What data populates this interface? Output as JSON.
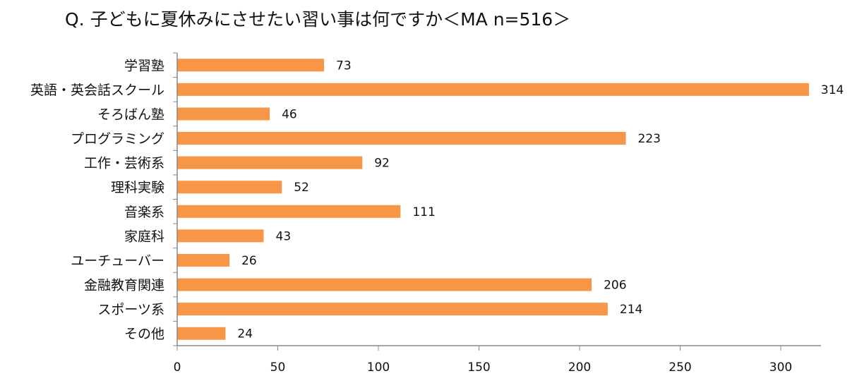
{
  "chart_data": {
    "type": "bar",
    "orientation": "horizontal",
    "title": "Q. 子どもに夏休みにさせたい習い事は何ですか＜MA n=516＞",
    "categories": [
      "学習塾",
      "英語・英会話スクール",
      "そろばん塾",
      "プログラミング",
      "工作・芸術系",
      "理科実験",
      "音楽系",
      "家庭科",
      "ユーチューバー",
      "金融教育関連",
      "スポーツ系",
      "その他"
    ],
    "values": [
      73,
      314,
      46,
      223,
      92,
      52,
      111,
      43,
      26,
      206,
      214,
      24
    ],
    "xlim": [
      0,
      320
    ],
    "xticks": [
      "0",
      "50",
      "100",
      "150",
      "200",
      "250",
      "300"
    ],
    "xlabel": "",
    "ylabel": "",
    "grid": false,
    "bar_color": "#F79646",
    "axis_color": "#888888"
  }
}
